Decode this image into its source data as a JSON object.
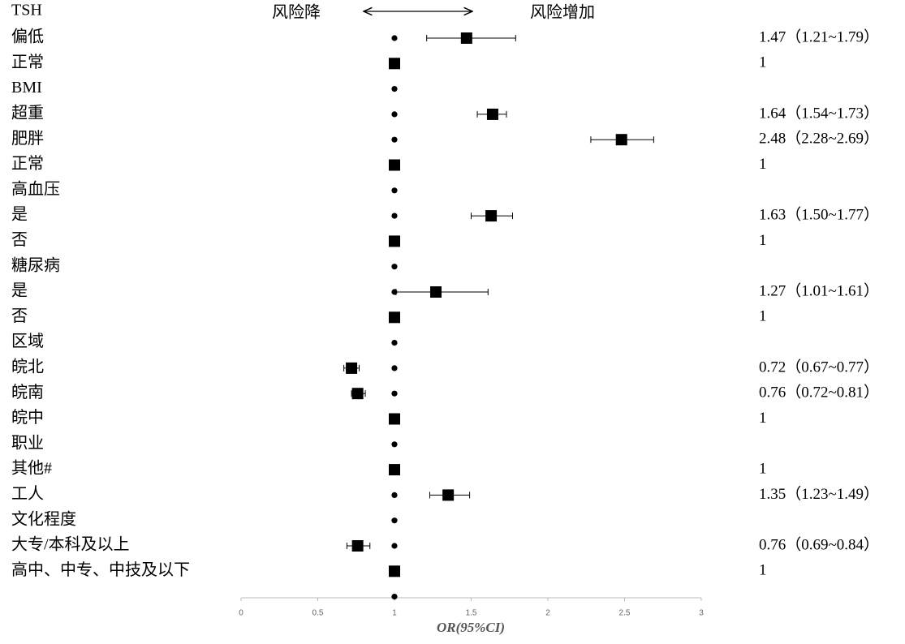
{
  "chart_data": {
    "type": "forest",
    "annotation_left": "风险降",
    "annotation_right": "风险增加",
    "x_label": "OR(95%CI)",
    "rows": [
      "TSH",
      "偏低",
      "正常",
      "BMI",
      "超重",
      "肥胖",
      "正常",
      "高血压",
      "是",
      "否",
      "糖尿病",
      "是",
      "否",
      "区域",
      "皖北",
      "皖南",
      "皖中",
      "职业",
      "其他#",
      "工人",
      "文化程度",
      "大专/本科及以上",
      "高中、中专、中技及以下"
    ],
    "values": [
      null,
      1.47,
      1,
      null,
      1.64,
      2.48,
      1,
      null,
      1.63,
      1,
      null,
      1.27,
      1,
      null,
      0.72,
      0.76,
      1,
      null,
      1,
      1.35,
      null,
      0.76,
      1
    ],
    "ci_low": [
      null,
      1.21,
      null,
      null,
      1.54,
      2.28,
      null,
      null,
      1.5,
      null,
      null,
      1.01,
      null,
      null,
      0.67,
      0.72,
      null,
      null,
      null,
      1.23,
      null,
      0.69,
      null
    ],
    "ci_high": [
      null,
      1.79,
      null,
      null,
      1.73,
      2.69,
      null,
      null,
      1.77,
      null,
      null,
      1.61,
      null,
      null,
      0.77,
      0.81,
      null,
      null,
      null,
      1.49,
      null,
      0.84,
      null
    ],
    "value_labels": [
      null,
      "1.47（1.21~1.79）",
      "1",
      null,
      "1.64（1.54~1.73）",
      "2.48（2.28~2.69）",
      "1",
      null,
      "1.63（1.50~1.77）",
      "1",
      null,
      "1.27（1.01~1.61）",
      "1",
      null,
      "0.72（0.67~0.77）",
      "0.76（0.72~0.81）",
      "1",
      null,
      "1",
      "1.35（1.23~1.49）",
      null,
      "0.76（0.69~0.84）",
      "1"
    ],
    "reference_line": 1,
    "color": "#000000",
    "xlim": [
      0,
      3
    ],
    "xticks": [
      0,
      0.5,
      1,
      1.5,
      2,
      2.5,
      3
    ]
  }
}
